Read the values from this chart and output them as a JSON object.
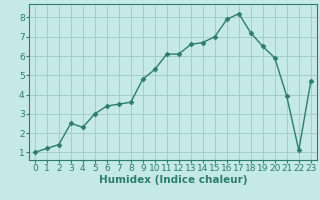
{
  "title": "",
  "xlabel": "Humidex (Indice chaleur)",
  "ylabel": "",
  "x": [
    0,
    1,
    2,
    3,
    4,
    5,
    6,
    7,
    8,
    9,
    10,
    11,
    12,
    13,
    14,
    15,
    16,
    17,
    18,
    19,
    20,
    21,
    22,
    23
  ],
  "y": [
    1.0,
    1.2,
    1.4,
    2.5,
    2.3,
    3.0,
    3.4,
    3.5,
    3.6,
    4.8,
    5.3,
    6.1,
    6.1,
    6.6,
    6.7,
    7.0,
    7.9,
    8.2,
    7.2,
    6.5,
    5.9,
    3.9,
    1.1,
    4.7
  ],
  "line_color": "#2d7d6e",
  "marker": "D",
  "marker_size": 2.5,
  "background_color": "#c5e8e8",
  "grid_color": "#a0c8c8",
  "ylim": [
    0.6,
    8.7
  ],
  "xlim": [
    -0.5,
    23.5
  ],
  "yticks": [
    1,
    2,
    3,
    4,
    5,
    6,
    7,
    8
  ],
  "xticks": [
    0,
    1,
    2,
    3,
    4,
    5,
    6,
    7,
    8,
    9,
    10,
    11,
    12,
    13,
    14,
    15,
    16,
    17,
    18,
    19,
    20,
    21,
    22,
    23
  ],
  "xlabel_fontsize": 7.5,
  "tick_fontsize": 6.5,
  "axis_label_color": "#2d7d6e"
}
